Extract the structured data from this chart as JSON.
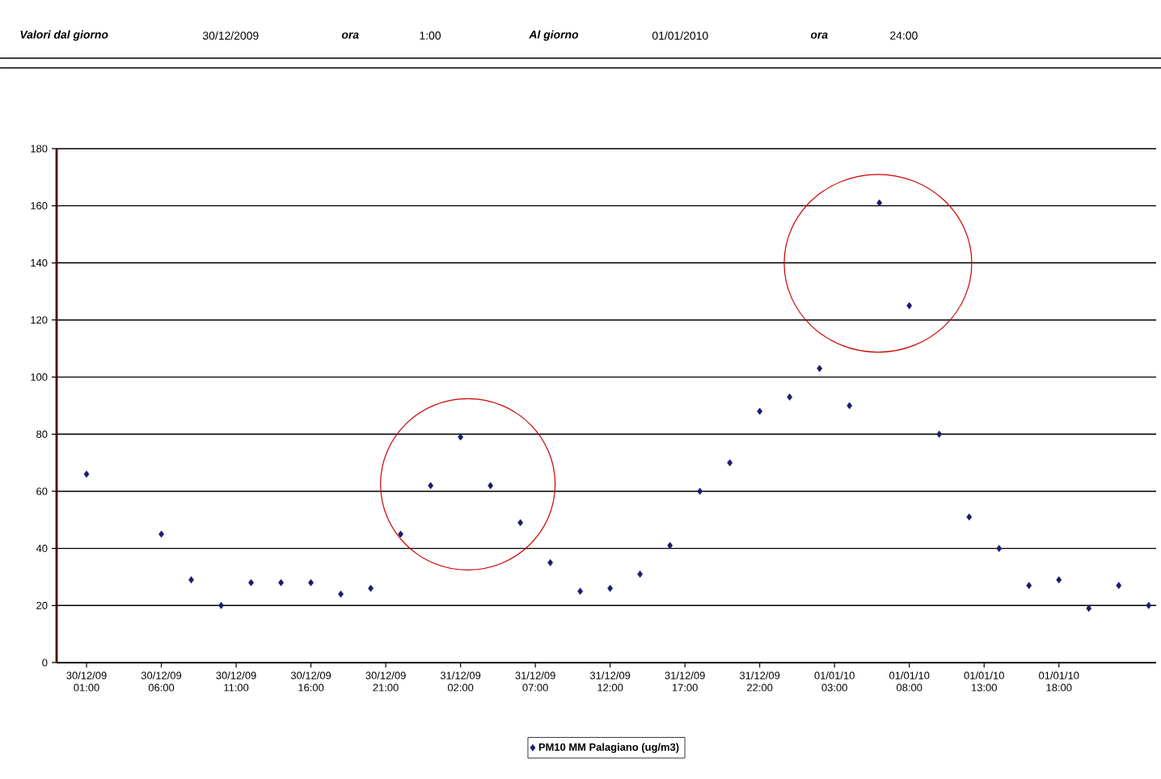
{
  "chart_data": {
    "type": "scatter",
    "annotations": [
      "Valori dal giorno",
      "30/12/2009",
      "ora",
      "1:00",
      "Al giorno",
      "01/01/2010",
      "ora",
      "24:00"
    ],
    "x": [
      "2009-12-30T01:00",
      "2009-12-30T06:00",
      "2009-12-30T08:00",
      "2009-12-30T10:00",
      "2009-12-30T12:00",
      "2009-12-30T14:00",
      "2009-12-30T16:00",
      "2009-12-30T18:00",
      "2009-12-30T20:00",
      "2009-12-30T22:00",
      "2009-12-31T00:00",
      "2009-12-31T02:00",
      "2009-12-31T04:00",
      "2009-12-31T06:00",
      "2009-12-31T08:00",
      "2009-12-31T10:00",
      "2009-12-31T12:00",
      "2009-12-31T14:00",
      "2009-12-31T16:00",
      "2009-12-31T18:00",
      "2009-12-31T20:00",
      "2009-12-31T22:00",
      "2010-01-01T00:00",
      "2010-01-01T02:00",
      "2010-01-01T04:00",
      "2010-01-01T06:00",
      "2010-01-01T08:00",
      "2010-01-01T10:00",
      "2010-01-01T12:00",
      "2010-01-01T14:00",
      "2010-01-01T16:00",
      "2010-01-01T18:00",
      "2010-01-01T20:00",
      "2010-01-01T22:00",
      "2010-01-02T00:00"
    ],
    "series": [
      {
        "name": "PM10 MM Palagiano (ug/m3)",
        "color": "#1c1c6e",
        "values": [
          66,
          45,
          29,
          20,
          28,
          28,
          28,
          24,
          26,
          45,
          62,
          79,
          62,
          49,
          35,
          25,
          26,
          31,
          41,
          60,
          70,
          88,
          93,
          103,
          90,
          161,
          125,
          80,
          51,
          40,
          27,
          29,
          19,
          27,
          20
        ]
      }
    ],
    "marker": "diamond",
    "xlim": [
      "2009-12-29T23:00",
      "2010-01-02T00:30"
    ],
    "xticks": [
      {
        "value": "2009-12-30T01:00",
        "label": "30/12/09 01:00"
      },
      {
        "value": "2009-12-30T06:00",
        "label": "30/12/09 06:00"
      },
      {
        "value": "2009-12-30T11:00",
        "label": "30/12/09 11:00"
      },
      {
        "value": "2009-12-30T16:00",
        "label": "30/12/09 16:00"
      },
      {
        "value": "2009-12-30T21:00",
        "label": "30/12/09 21:00"
      },
      {
        "value": "2009-12-31T02:00",
        "label": "31/12/09 02:00"
      },
      {
        "value": "2009-12-31T07:00",
        "label": "31/12/09 07:00"
      },
      {
        "value": "2009-12-31T12:00",
        "label": "31/12/09 12:00"
      },
      {
        "value": "2009-12-31T17:00",
        "label": "31/12/09 17:00"
      },
      {
        "value": "2009-12-31T22:00",
        "label": "31/12/09 22:00"
      },
      {
        "value": "2010-01-01T03:00",
        "label": "01/01/10 03:00"
      },
      {
        "value": "2010-01-01T08:00",
        "label": "01/01/10 08:00"
      },
      {
        "value": "2010-01-01T13:00",
        "label": "01/01/10 13:00"
      },
      {
        "value": "2010-01-01T18:00",
        "label": "01/01/10 18:00"
      }
    ],
    "ylim": [
      0,
      180
    ],
    "yticks": [
      0,
      20,
      40,
      60,
      80,
      100,
      120,
      140,
      160,
      180
    ],
    "grid": "y",
    "legend": "bottom"
  }
}
